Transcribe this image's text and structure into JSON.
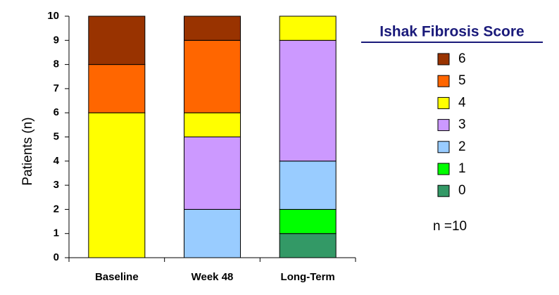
{
  "chart_data": {
    "type": "stacked-bar",
    "y_label": "Patients (n)",
    "legend_title": "Ishak Fibrosis Score",
    "annotation": "n =10",
    "categories": [
      "Baseline",
      "Week 48",
      "Long-Term"
    ],
    "series": [
      {
        "name": "0",
        "color": "#339966",
        "values": [
          0,
          0,
          1
        ]
      },
      {
        "name": "1",
        "color": "#00ff00",
        "values": [
          0,
          0,
          1
        ]
      },
      {
        "name": "2",
        "color": "#99ccff",
        "values": [
          0,
          2,
          2
        ]
      },
      {
        "name": "3",
        "color": "#cc99ff",
        "values": [
          0,
          3,
          5
        ]
      },
      {
        "name": "4",
        "color": "#ffff00",
        "values": [
          6,
          1,
          1
        ]
      },
      {
        "name": "5",
        "color": "#ff6600",
        "values": [
          2,
          3,
          0
        ]
      },
      {
        "name": "6",
        "color": "#993300",
        "values": [
          2,
          1,
          0
        ]
      }
    ],
    "ylim": [
      0,
      10
    ],
    "yticks": [
      0,
      1,
      2,
      3,
      4,
      5,
      6,
      7,
      8,
      9,
      10
    ]
  }
}
